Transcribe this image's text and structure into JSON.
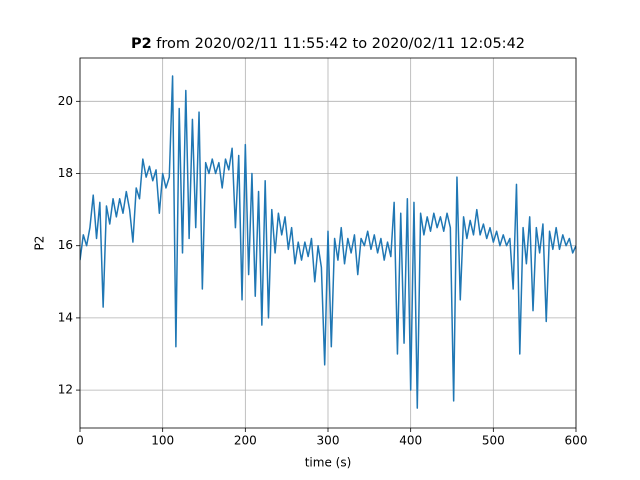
{
  "chart_data": {
    "type": "line",
    "title_name": "P2",
    "title": "from 2020/02/11 11:55:42 to 2020/02/11 12:05:42",
    "xlabel": "time (s)",
    "ylabel": "P2",
    "xlim": [
      0,
      600
    ],
    "xticks": [
      0,
      100,
      200,
      300,
      400,
      500,
      600
    ],
    "ylim": [
      10.95,
      21.2
    ],
    "yticks": [
      12,
      14,
      16,
      18,
      20
    ],
    "grid": true,
    "x": [
      0,
      4,
      8,
      12,
      16,
      20,
      24,
      28,
      32,
      36,
      40,
      44,
      48,
      52,
      56,
      60,
      64,
      68,
      72,
      76,
      80,
      84,
      88,
      92,
      96,
      100,
      104,
      108,
      112,
      116,
      120,
      124,
      128,
      132,
      136,
      140,
      144,
      148,
      152,
      156,
      160,
      164,
      168,
      172,
      176,
      180,
      184,
      188,
      192,
      196,
      200,
      204,
      208,
      212,
      216,
      220,
      224,
      228,
      232,
      236,
      240,
      244,
      248,
      252,
      256,
      260,
      264,
      268,
      272,
      276,
      280,
      284,
      288,
      292,
      296,
      300,
      304,
      308,
      312,
      316,
      320,
      324,
      328,
      332,
      336,
      340,
      344,
      348,
      352,
      356,
      360,
      364,
      368,
      372,
      376,
      380,
      384,
      388,
      392,
      396,
      400,
      404,
      408,
      412,
      416,
      420,
      424,
      428,
      432,
      436,
      440,
      444,
      448,
      452,
      456,
      460,
      464,
      468,
      472,
      476,
      480,
      484,
      488,
      492,
      496,
      500,
      504,
      508,
      512,
      516,
      520,
      524,
      528,
      532,
      536,
      540,
      544,
      548,
      552,
      556,
      560,
      564,
      568,
      572,
      576,
      580,
      584,
      588,
      592,
      596,
      600
    ],
    "series": [
      {
        "name": "P2",
        "color": "#1f77b4",
        "values": [
          15.6,
          16.3,
          16.0,
          16.5,
          17.4,
          16.2,
          17.2,
          14.3,
          17.1,
          16.6,
          17.3,
          16.8,
          17.3,
          16.9,
          17.5,
          17.0,
          16.1,
          17.6,
          17.3,
          18.4,
          17.9,
          18.2,
          17.8,
          18.1,
          16.9,
          18.0,
          17.6,
          17.9,
          20.7,
          13.2,
          19.8,
          15.8,
          20.3,
          16.2,
          19.5,
          16.5,
          19.7,
          14.8,
          18.3,
          18.0,
          18.4,
          18.0,
          18.3,
          17.6,
          18.4,
          18.1,
          18.7,
          16.5,
          18.5,
          14.5,
          18.8,
          15.2,
          18.0,
          14.6,
          17.5,
          13.8,
          17.8,
          14.0,
          17.0,
          15.8,
          16.9,
          16.3,
          16.8,
          15.9,
          16.5,
          15.5,
          16.1,
          15.6,
          16.1,
          15.7,
          16.2,
          15.0,
          16.0,
          15.4,
          12.7,
          16.4,
          13.2,
          16.2,
          15.6,
          16.5,
          15.5,
          16.2,
          15.8,
          16.3,
          15.2,
          16.2,
          16.0,
          16.4,
          15.9,
          16.3,
          15.8,
          16.2,
          15.6,
          16.1,
          15.7,
          17.2,
          13.0,
          16.9,
          13.3,
          17.3,
          12.0,
          17.2,
          11.5,
          16.9,
          16.3,
          16.8,
          16.4,
          16.9,
          16.5,
          16.8,
          16.4,
          16.9,
          16.5,
          11.7,
          17.9,
          14.5,
          16.8,
          16.2,
          16.7,
          16.3,
          17.0,
          16.3,
          16.6,
          16.2,
          16.5,
          16.1,
          16.4,
          16.0,
          16.3,
          16.0,
          16.2,
          14.8,
          17.7,
          13.0,
          16.5,
          15.5,
          16.8,
          14.2,
          16.5,
          15.8,
          16.6,
          13.9,
          16.4,
          15.9,
          16.5,
          15.9,
          16.3,
          16.0,
          16.2,
          15.8,
          16.0
        ]
      }
    ]
  }
}
